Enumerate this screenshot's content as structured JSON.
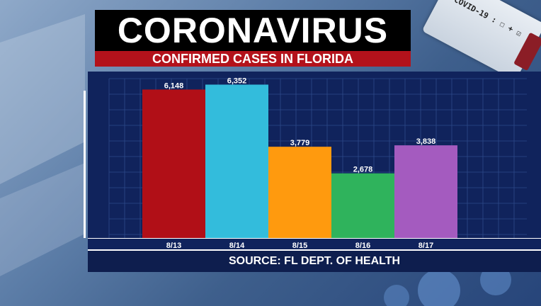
{
  "title": "CORONAVIRUS",
  "subtitle": "CONFIRMED CASES IN FLORIDA",
  "source": "SOURCE: FL DEPT. OF HEALTH",
  "vial_label": "COVID-19 : ☐ + ☑",
  "colors": {
    "bar_colors": [
      "#b10f17",
      "#33bcdc",
      "#ff9a0e",
      "#2fb35c",
      "#a45bbf"
    ],
    "panel": "#10235c",
    "grid": "#2d4a8a"
  },
  "chart_data": {
    "type": "bar",
    "title": "CONFIRMED CASES IN FLORIDA",
    "categories": [
      "8/13",
      "8/14",
      "8/15",
      "8/16",
      "8/17"
    ],
    "values": [
      6148,
      6352,
      3779,
      2678,
      3838
    ],
    "value_labels": [
      "6,148",
      "6,352",
      "3,779",
      "2,678",
      "3,838"
    ],
    "xlabel": "",
    "ylabel": "",
    "ylim": [
      0,
      6600
    ],
    "grid": true,
    "legend": "none"
  }
}
